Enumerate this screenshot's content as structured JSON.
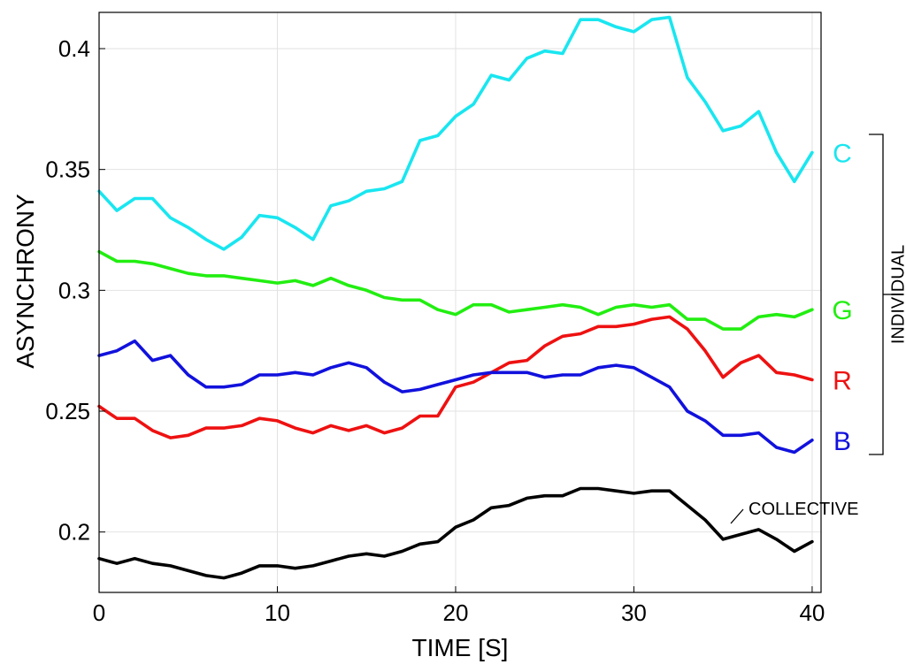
{
  "chart_data": {
    "type": "line",
    "xlabel": "TIME [S]",
    "ylabel": "ASYNCHRONY",
    "xlim": [
      0,
      40.5
    ],
    "ylim": [
      0.175,
      0.415
    ],
    "grid": true,
    "x_ticks": [
      0,
      10,
      20,
      30,
      40
    ],
    "x_tick_labels": [
      "0",
      "10",
      "20",
      "30",
      "40"
    ],
    "y_ticks": [
      0.2,
      0.25,
      0.3,
      0.35,
      0.4
    ],
    "y_tick_labels": [
      "0.2",
      "0.25",
      "0.3",
      "0.35",
      "0.4"
    ],
    "series": [
      {
        "name": "C",
        "color": "#19e6f0",
        "x": [
          0,
          1,
          2,
          3,
          4,
          5,
          6,
          7,
          8,
          9,
          10,
          11,
          12,
          13,
          14,
          15,
          16,
          17,
          18,
          19,
          20,
          21,
          22,
          23,
          24,
          25,
          26,
          27,
          28,
          29,
          30,
          31,
          32,
          33,
          34,
          35,
          36,
          37,
          38,
          39,
          40
        ],
        "values": [
          0.341,
          0.333,
          0.338,
          0.338,
          0.33,
          0.326,
          0.321,
          0.317,
          0.322,
          0.331,
          0.33,
          0.326,
          0.321,
          0.335,
          0.337,
          0.341,
          0.342,
          0.345,
          0.362,
          0.364,
          0.372,
          0.377,
          0.389,
          0.387,
          0.396,
          0.399,
          0.398,
          0.412,
          0.412,
          0.409,
          0.407,
          0.412,
          0.413,
          0.388,
          0.378,
          0.366,
          0.368,
          0.374,
          0.357,
          0.345,
          0.357
        ]
      },
      {
        "name": "G",
        "color": "#22ee11",
        "x": [
          0,
          1,
          2,
          3,
          4,
          5,
          6,
          7,
          8,
          9,
          10,
          11,
          12,
          13,
          14,
          15,
          16,
          17,
          18,
          19,
          20,
          21,
          22,
          23,
          24,
          25,
          26,
          27,
          28,
          29,
          30,
          31,
          32,
          33,
          34,
          35,
          36,
          37,
          38,
          39,
          40
        ],
        "values": [
          0.316,
          0.312,
          0.312,
          0.311,
          0.309,
          0.307,
          0.306,
          0.306,
          0.305,
          0.304,
          0.303,
          0.304,
          0.302,
          0.305,
          0.302,
          0.3,
          0.297,
          0.296,
          0.296,
          0.292,
          0.29,
          0.294,
          0.294,
          0.291,
          0.292,
          0.293,
          0.294,
          0.293,
          0.29,
          0.293,
          0.294,
          0.293,
          0.294,
          0.288,
          0.288,
          0.284,
          0.284,
          0.289,
          0.29,
          0.289,
          0.292
        ]
      },
      {
        "name": "R",
        "color": "#ee1111",
        "x": [
          0,
          1,
          2,
          3,
          4,
          5,
          6,
          7,
          8,
          9,
          10,
          11,
          12,
          13,
          14,
          15,
          16,
          17,
          18,
          19,
          20,
          21,
          22,
          23,
          24,
          25,
          26,
          27,
          28,
          29,
          30,
          31,
          32,
          33,
          34,
          35,
          36,
          37,
          38,
          39,
          40
        ],
        "values": [
          0.252,
          0.247,
          0.247,
          0.242,
          0.239,
          0.24,
          0.243,
          0.243,
          0.244,
          0.247,
          0.246,
          0.243,
          0.241,
          0.244,
          0.242,
          0.244,
          0.241,
          0.243,
          0.248,
          0.248,
          0.26,
          0.262,
          0.266,
          0.27,
          0.271,
          0.277,
          0.281,
          0.282,
          0.285,
          0.285,
          0.286,
          0.288,
          0.289,
          0.284,
          0.275,
          0.264,
          0.27,
          0.273,
          0.266,
          0.265,
          0.263
        ]
      },
      {
        "name": "B",
        "color": "#1111dd",
        "x": [
          0,
          1,
          2,
          3,
          4,
          5,
          6,
          7,
          8,
          9,
          10,
          11,
          12,
          13,
          14,
          15,
          16,
          17,
          18,
          19,
          20,
          21,
          22,
          23,
          24,
          25,
          26,
          27,
          28,
          29,
          30,
          31,
          32,
          33,
          34,
          35,
          36,
          37,
          38,
          39,
          40
        ],
        "values": [
          0.273,
          0.275,
          0.279,
          0.271,
          0.273,
          0.265,
          0.26,
          0.26,
          0.261,
          0.265,
          0.265,
          0.266,
          0.265,
          0.268,
          0.27,
          0.268,
          0.262,
          0.258,
          0.259,
          0.261,
          0.263,
          0.265,
          0.266,
          0.266,
          0.266,
          0.264,
          0.265,
          0.265,
          0.268,
          0.269,
          0.268,
          0.264,
          0.26,
          0.25,
          0.246,
          0.24,
          0.24,
          0.241,
          0.235,
          0.233,
          0.238
        ]
      },
      {
        "name": "COLLECTIVE",
        "color": "#000000",
        "x": [
          0,
          1,
          2,
          3,
          4,
          5,
          6,
          7,
          8,
          9,
          10,
          11,
          12,
          13,
          14,
          15,
          16,
          17,
          18,
          19,
          20,
          21,
          22,
          23,
          24,
          25,
          26,
          27,
          28,
          29,
          30,
          31,
          32,
          33,
          34,
          35,
          36,
          37,
          38,
          39,
          40
        ],
        "values": [
          0.189,
          0.187,
          0.189,
          0.187,
          0.186,
          0.184,
          0.182,
          0.181,
          0.183,
          0.186,
          0.186,
          0.185,
          0.186,
          0.188,
          0.19,
          0.191,
          0.19,
          0.192,
          0.195,
          0.196,
          0.202,
          0.205,
          0.21,
          0.211,
          0.214,
          0.215,
          0.215,
          0.218,
          0.218,
          0.217,
          0.216,
          0.217,
          0.217,
          0.211,
          0.205,
          0.197,
          0.199,
          0.201,
          0.197,
          0.192,
          0.196
        ]
      }
    ],
    "annotations": {
      "collective_label": "COLLECTIVE",
      "individual_label": "INDIVIDUAL"
    }
  }
}
